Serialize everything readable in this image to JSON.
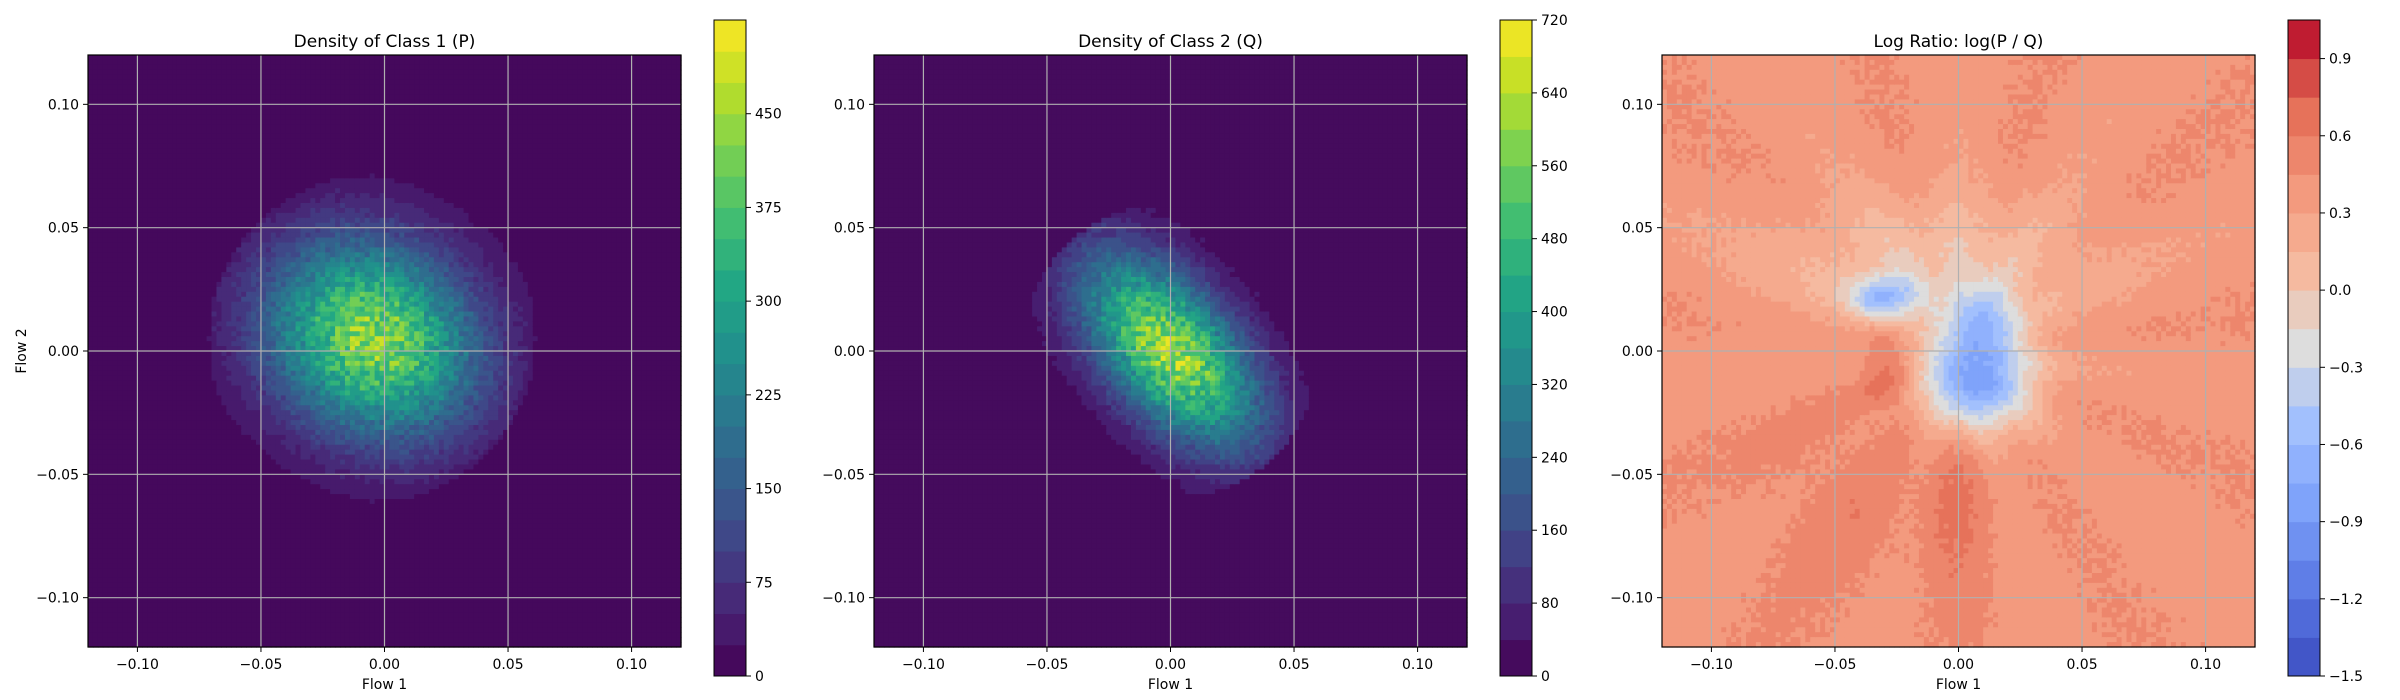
{
  "chart_data": [
    {
      "type": "heatmap",
      "subtype": "filled-contour",
      "title": "Density of Class 1 (P)",
      "xlabel": "Flow 1",
      "ylabel": "Flow 2",
      "xlim": [
        -0.12,
        0.12
      ],
      "ylim": [
        -0.12,
        0.12
      ],
      "x_ticks": [
        -0.1,
        -0.05,
        0.0,
        0.05,
        0.1
      ],
      "x_tick_labels": [
        "−0.10",
        "−0.05",
        "0.00",
        "0.05",
        "0.10"
      ],
      "y_ticks": [
        -0.1,
        -0.05,
        0.0,
        0.05,
        0.1
      ],
      "y_tick_labels": [
        "−0.10",
        "−0.05",
        "0.00",
        "0.05",
        "0.10"
      ],
      "grid": true,
      "colormap": "viridis",
      "colorbar": {
        "min": 0,
        "max": 525,
        "ticks": [
          0,
          75,
          150,
          225,
          300,
          375,
          450
        ],
        "tick_labels": [
          "0",
          "75",
          "150",
          "225",
          "300",
          "375",
          "450"
        ],
        "levels": 21
      },
      "blobs": [
        {
          "cx": -0.005,
          "cy": 0.005,
          "sx": 0.03,
          "sy": 0.028,
          "rho": -0.15,
          "peak": 430,
          "extent": 0.066
        }
      ]
    },
    {
      "type": "heatmap",
      "subtype": "filled-contour",
      "title": "Density of Class 2 (Q)",
      "xlabel": "Flow 1",
      "ylabel": "",
      "xlim": [
        -0.12,
        0.12
      ],
      "ylim": [
        -0.12,
        0.12
      ],
      "x_ticks": [
        -0.1,
        -0.05,
        0.0,
        0.05,
        0.1
      ],
      "x_tick_labels": [
        "−0.10",
        "−0.05",
        "0.00",
        "0.05",
        "0.10"
      ],
      "y_ticks": [
        -0.1,
        -0.05,
        0.0,
        0.05,
        0.1
      ],
      "y_tick_labels": [
        "−0.10",
        "−0.05",
        "0.00",
        "0.05",
        "0.10"
      ],
      "grid": true,
      "colormap": "viridis",
      "colorbar": {
        "min": 0,
        "max": 720,
        "ticks": [
          0,
          80,
          160,
          240,
          320,
          400,
          480,
          560,
          640,
          720
        ],
        "tick_labels": [
          "0",
          "80",
          "160",
          "240",
          "320",
          "400",
          "480",
          "560",
          "640",
          "720"
        ],
        "levels": 18
      },
      "blobs": [
        {
          "cx": 0.0,
          "cy": 0.0,
          "sx": 0.025,
          "sy": 0.027,
          "rho": -0.55,
          "peak": 620,
          "extent": 0.06
        }
      ]
    },
    {
      "type": "heatmap",
      "subtype": "filled-contour",
      "title": "Log Ratio: log(P / Q)",
      "xlabel": "Flow 1",
      "ylabel": "",
      "xlim": [
        -0.12,
        0.12
      ],
      "ylim": [
        -0.12,
        0.12
      ],
      "x_ticks": [
        -0.1,
        -0.05,
        0.0,
        0.05,
        0.1
      ],
      "x_tick_labels": [
        "−0.10",
        "−0.05",
        "0.00",
        "0.05",
        "0.10"
      ],
      "y_ticks": [
        -0.1,
        -0.05,
        0.0,
        0.05,
        0.1
      ],
      "y_tick_labels": [
        "−0.10",
        "−0.05",
        "0.00",
        "0.05",
        "0.10"
      ],
      "grid": true,
      "colormap": "coolwarm",
      "colorbar": {
        "min": -1.5,
        "max": 1.05,
        "ticks": [
          -1.5,
          -1.2,
          -0.9,
          -0.6,
          -0.3,
          0.0,
          0.3,
          0.6,
          0.9
        ],
        "tick_labels": [
          "−1.5",
          "−1.2",
          "−0.9",
          "−0.6",
          "−0.3",
          "0.0",
          "0.3",
          "0.6",
          "0.9"
        ],
        "levels": 17
      },
      "background_value": 0.4,
      "features": [
        {
          "cx": 0.007,
          "cy": -0.012,
          "sx": 0.016,
          "sy": 0.015,
          "amp": -1.25
        },
        {
          "cx": -0.03,
          "cy": 0.022,
          "sx": 0.01,
          "sy": 0.006,
          "amp": -0.8
        },
        {
          "cx": 0.01,
          "cy": 0.014,
          "sx": 0.01,
          "sy": 0.01,
          "amp": -0.55
        },
        {
          "cx": -0.01,
          "cy": 0.035,
          "sx": 0.045,
          "sy": 0.02,
          "amp": -0.4
        },
        {
          "cx": -0.028,
          "cy": -0.008,
          "sx": 0.007,
          "sy": 0.012,
          "amp": 0.35
        },
        {
          "cx": 0.0,
          "cy": -0.055,
          "sx": 0.01,
          "sy": 0.03,
          "amp": 0.18
        },
        {
          "cx": -0.045,
          "cy": -0.06,
          "sx": 0.03,
          "sy": 0.03,
          "amp": 0.12
        }
      ]
    }
  ]
}
